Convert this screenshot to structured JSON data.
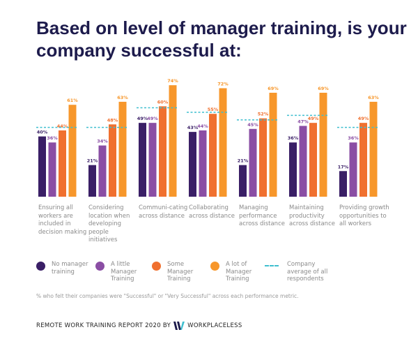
{
  "title": "Based on level of manager training, is your company successful at:",
  "chart_data": {
    "type": "bar",
    "title": "Based on level of manager training, is your company successful at:",
    "categories": [
      "Ensuring all workers are included in decision making",
      "Considering location when developing people initiatives",
      "Communi-cating across distance",
      "Collaborating across distance",
      "Managing performance across distance",
      "Maintaining productivity across distance",
      "Providing growth opportunities to all workers"
    ],
    "series": [
      {
        "name": "No manager training",
        "color": "#3a1f66",
        "values": [
          40,
          21,
          49,
          43,
          21,
          36,
          17
        ]
      },
      {
        "name": "A little Manager Training",
        "color": "#8a4ea4",
        "values": [
          36,
          34,
          49,
          44,
          45,
          47,
          36
        ]
      },
      {
        "name": "Some Manager Training",
        "color": "#f0702f",
        "values": [
          44,
          48,
          60,
          55,
          52,
          49,
          49
        ]
      },
      {
        "name": "A lot of Manager Training",
        "color": "#f7972b",
        "values": [
          61,
          63,
          74,
          72,
          69,
          69,
          63
        ]
      }
    ],
    "reference_line": {
      "name": "Company average of all respondents",
      "color": "#3fbfcf",
      "style": "dashed",
      "values": [
        46,
        46,
        59,
        56,
        51,
        54,
        46
      ]
    },
    "value_suffix": "%",
    "ylim": [
      0,
      80
    ],
    "grid": false,
    "legend_placement": "bottom"
  },
  "note": "% who felt their companies were \"Successful\" or \"Very Successful\" across each performance metric.",
  "footer": {
    "text": "REMOTE WORK TRAINING REPORT 2020 BY",
    "brand": "WORKPLACELESS",
    "logo_letter": "W"
  }
}
